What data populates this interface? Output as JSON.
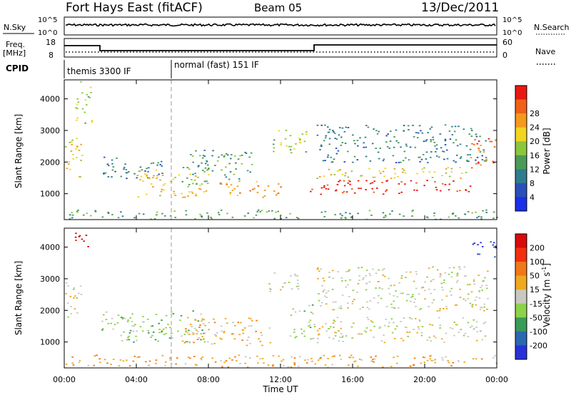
{
  "header": {
    "title": "Fort Hays East (fitACF)",
    "beam": "Beam 05",
    "date": "13/Dec/2011"
  },
  "noise_panel": {
    "left_label": "N.Sky",
    "left_ticks": [
      "10^5",
      "10^0"
    ],
    "right_label": "N.Search",
    "right_ticks": [
      "10^5",
      "10^0"
    ]
  },
  "freq_panel": {
    "left_label_1": "Freq.",
    "left_label_2": "[MHz]",
    "left_ticks": [
      "18",
      "8"
    ],
    "right_label": "Nave",
    "right_ticks": [
      "60",
      "0"
    ]
  },
  "cpid": {
    "label": "CPID",
    "modes": [
      "themis 3300 IF",
      "normal (fast) 151 IF"
    ]
  },
  "chart_data": [
    {
      "type": "heatmap",
      "title": "",
      "xlabel": "Time UT",
      "ylabel": "Slant Range [km]",
      "xlim_hours": [
        0,
        24
      ],
      "ylim_km": [
        180,
        4600
      ],
      "x_ticks": [
        "00:00",
        "04:00",
        "08:00",
        "12:00",
        "16:00",
        "20:00",
        "00:00"
      ],
      "y_ticks": [
        1000,
        2000,
        3000,
        4000
      ],
      "colorbar": {
        "label": "Power [dB]",
        "tick_labels": [
          "4",
          "8",
          "12",
          "16",
          "20",
          "24",
          "28"
        ],
        "colors": [
          "#1a2fe8",
          "#2850b8",
          "#2f7c8c",
          "#4a9a58",
          "#8cc63c",
          "#f2d422",
          "#f39a1c",
          "#f06018",
          "#e81a10"
        ]
      },
      "regions": [
        {
          "t": [
            0.0,
            1.0
          ],
          "range": [
            1500,
            2900
          ],
          "level": 5
        },
        {
          "t": [
            0.6,
            1.5
          ],
          "range": [
            3200,
            4600
          ],
          "level": 4
        },
        {
          "t": [
            2.0,
            5.5
          ],
          "range": [
            1500,
            2200
          ],
          "level": 2
        },
        {
          "t": [
            4.0,
            8.0
          ],
          "range": [
            900,
            1800
          ],
          "level": 5
        },
        {
          "t": [
            6.5,
            10.5
          ],
          "range": [
            1300,
            2400
          ],
          "level": 3
        },
        {
          "t": [
            8.5,
            12.0
          ],
          "range": [
            900,
            1400
          ],
          "level": 6
        },
        {
          "t": [
            11.5,
            13.5
          ],
          "range": [
            2300,
            3100
          ],
          "level": 4
        },
        {
          "t": [
            13.5,
            22.5
          ],
          "range": [
            1000,
            1450
          ],
          "level": 8
        },
        {
          "t": [
            13.7,
            22.5
          ],
          "range": [
            1500,
            1850
          ],
          "level": 5
        },
        {
          "t": [
            14.0,
            23.5
          ],
          "range": [
            2000,
            3200
          ],
          "level": 2
        },
        {
          "t": [
            22.5,
            24.0
          ],
          "range": [
            1800,
            2800
          ],
          "level": 7
        },
        {
          "t": [
            0.0,
            24.0
          ],
          "range": [
            200,
            500
          ],
          "level": 3
        }
      ]
    },
    {
      "type": "heatmap",
      "title": "",
      "xlabel": "Time UT",
      "ylabel": "Slant Range [km]",
      "xlim_hours": [
        0,
        24
      ],
      "ylim_km": [
        180,
        4600
      ],
      "x_ticks": [
        "00:00",
        "04:00",
        "08:00",
        "12:00",
        "16:00",
        "20:00",
        "00:00"
      ],
      "y_ticks": [
        1000,
        2000,
        3000,
        4000
      ],
      "colorbar": {
        "label": "Velocity [m s^-1]",
        "tick_labels": [
          "200",
          "100",
          "50",
          "15",
          "-15",
          "-50",
          "-100",
          "-200"
        ],
        "colors": [
          "#2832d8",
          "#2a68b0",
          "#3a9a58",
          "#8cd24a",
          "#c8c8c0",
          "#f0a820",
          "#f07818",
          "#f03010",
          "#d80a0a"
        ]
      },
      "regions": [
        {
          "t": [
            0.5,
            1.3
          ],
          "range": [
            3800,
            4500
          ],
          "level": 8
        },
        {
          "t": [
            0.0,
            1.0
          ],
          "range": [
            1800,
            2900
          ],
          "level": 4
        },
        {
          "t": [
            2.0,
            8.0
          ],
          "range": [
            1000,
            2000
          ],
          "level": 3
        },
        {
          "t": [
            6.5,
            11.5
          ],
          "range": [
            900,
            1800
          ],
          "level": 5
        },
        {
          "t": [
            11.0,
            13.0
          ],
          "range": [
            2600,
            3200
          ],
          "level": 4
        },
        {
          "t": [
            12.5,
            14.0
          ],
          "range": [
            1100,
            2200
          ],
          "level": 3
        },
        {
          "t": [
            14.0,
            23.5
          ],
          "range": [
            1000,
            1800
          ],
          "level": 4
        },
        {
          "t": [
            14.0,
            23.5
          ],
          "range": [
            2000,
            3400
          ],
          "level": 4
        },
        {
          "t": [
            22.5,
            24.0
          ],
          "range": [
            3700,
            4200
          ],
          "level": 0
        },
        {
          "t": [
            0.0,
            24.0
          ],
          "range": [
            200,
            600
          ],
          "level": 5
        }
      ]
    }
  ]
}
